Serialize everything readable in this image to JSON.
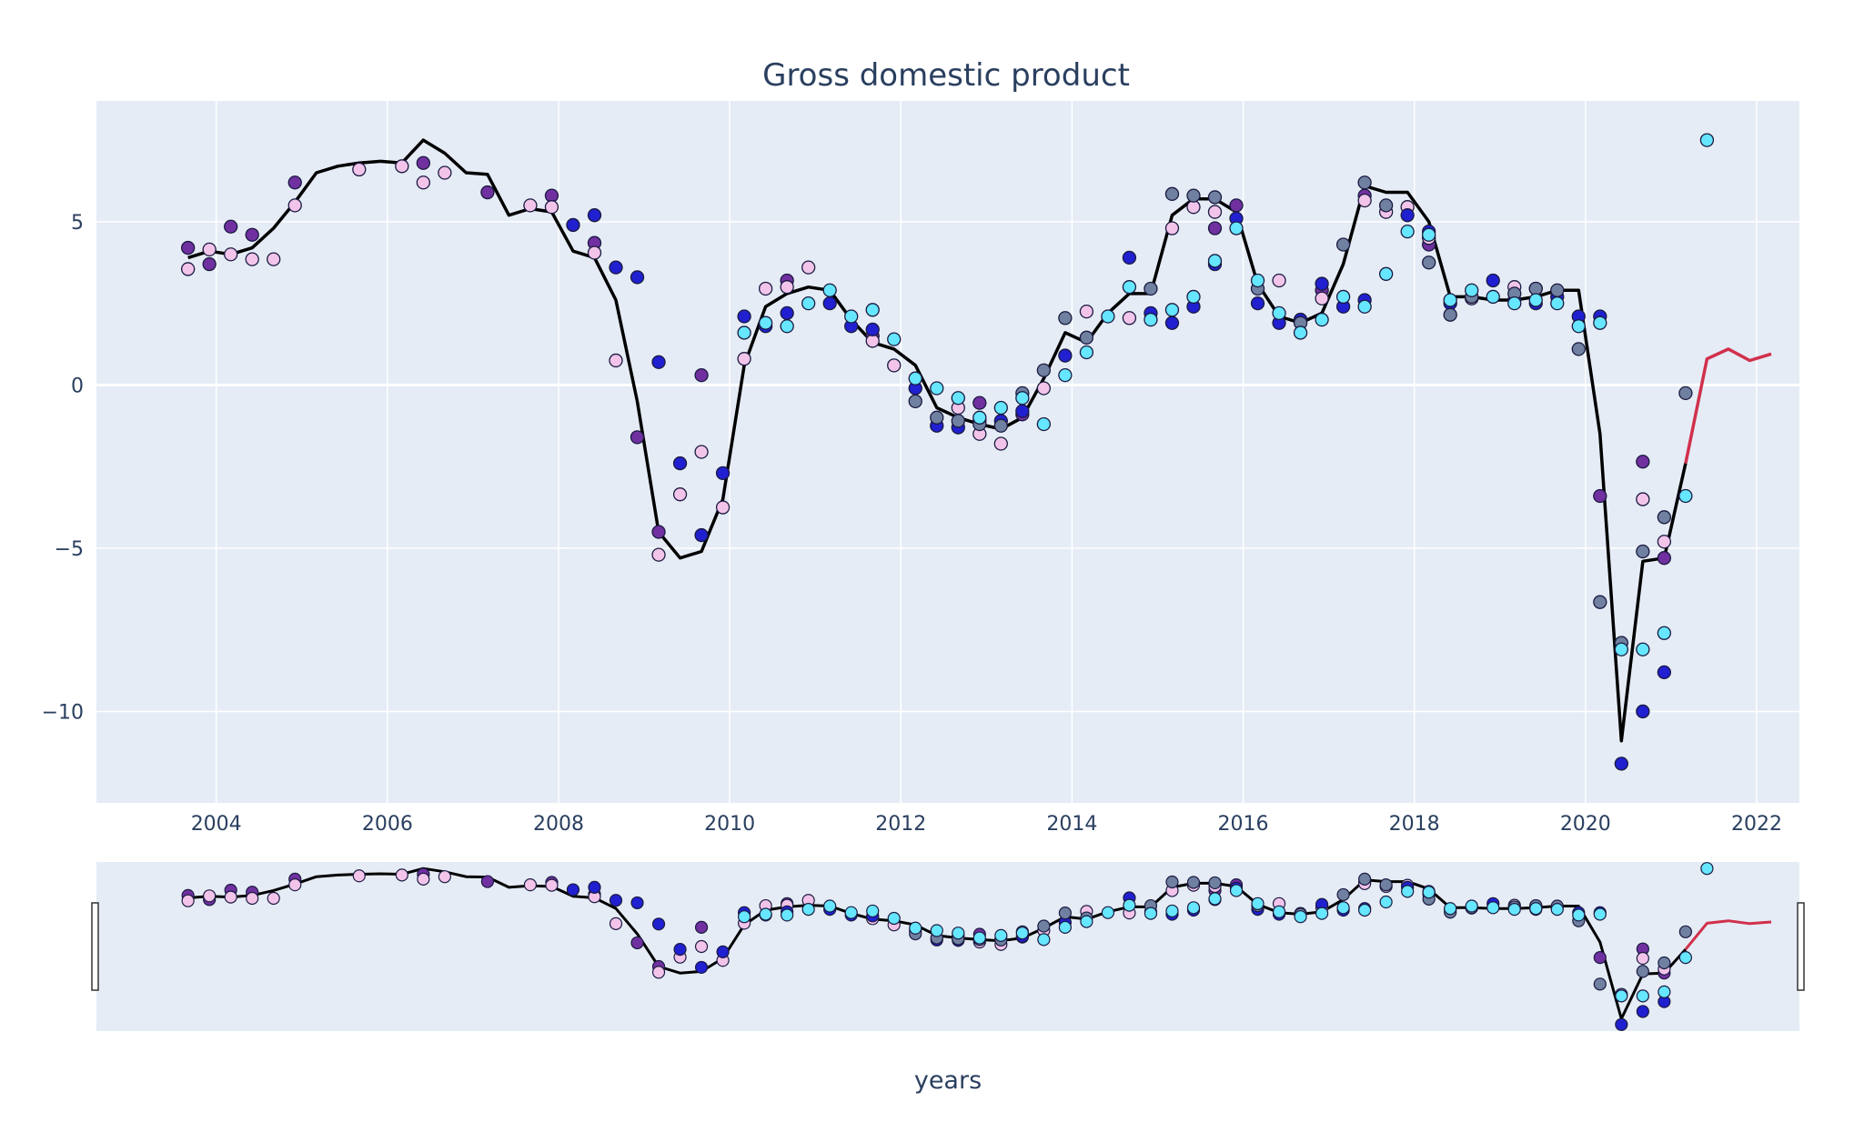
{
  "chart_data": {
    "type": "line",
    "title": "Gross domestic product",
    "xlabel": "years",
    "ylabel": "",
    "xlim": [
      2002.6,
      2022.5
    ],
    "ylim": [
      -12.8,
      8.7
    ],
    "x_ticks": [
      2004,
      2006,
      2008,
      2010,
      2012,
      2014,
      2016,
      2018,
      2020,
      2022
    ],
    "x_tick_labels": [
      "2004",
      "2006",
      "2008",
      "2010",
      "2012",
      "2014",
      "2016",
      "2018",
      "2020",
      "2022"
    ],
    "y_ticks": [
      5,
      0,
      -5,
      -10
    ],
    "y_tick_labels": [
      "5",
      "0",
      "−5",
      "−10"
    ],
    "grid": true,
    "rangeslider": true,
    "colors": {
      "plot_background": "#e5ecf6",
      "grid": "#ffffff",
      "actual_line": "#000000",
      "forecast_line": "#d1304b",
      "point_outline": "#1a1a40",
      "text": "#2a3f5f"
    },
    "series": [
      {
        "role": "actual",
        "color": "#000000",
        "x": [
          2003.67,
          2003.92,
          2004.17,
          2004.42,
          2004.67,
          2004.92,
          2005.17,
          2005.42,
          2005.67,
          2005.92,
          2006.17,
          2006.42,
          2006.67,
          2006.92,
          2007.17,
          2007.42,
          2007.67,
          2007.92,
          2008.17,
          2008.42,
          2008.67,
          2008.92,
          2009.17,
          2009.42,
          2009.67,
          2009.92,
          2010.17,
          2010.42,
          2010.67,
          2010.92,
          2011.17,
          2011.42,
          2011.67,
          2011.92,
          2012.17,
          2012.42,
          2012.67,
          2012.92,
          2013.17,
          2013.42,
          2013.67,
          2013.92,
          2014.17,
          2014.42,
          2014.67,
          2014.92,
          2015.17,
          2015.42,
          2015.67,
          2015.92,
          2016.17,
          2016.42,
          2016.67,
          2016.92,
          2017.17,
          2017.42,
          2017.67,
          2017.92,
          2018.17,
          2018.42,
          2018.67,
          2018.92,
          2019.17,
          2019.42,
          2019.67,
          2019.92,
          2020.17,
          2020.42,
          2020.67,
          2020.92,
          2021.17
        ],
        "values": [
          3.9,
          4.1,
          4.0,
          4.2,
          4.8,
          5.6,
          6.5,
          6.7,
          6.8,
          6.85,
          6.8,
          7.5,
          7.1,
          6.5,
          6.45,
          5.2,
          5.4,
          5.3,
          4.1,
          3.9,
          2.6,
          -0.5,
          -4.5,
          -5.3,
          -5.1,
          -3.5,
          0.6,
          2.4,
          2.8,
          3.0,
          2.9,
          2.0,
          1.3,
          1.1,
          0.6,
          -0.7,
          -1.0,
          -1.2,
          -1.35,
          -1.0,
          0.2,
          1.6,
          1.3,
          2.2,
          2.8,
          2.8,
          5.2,
          5.7,
          5.7,
          5.3,
          3.1,
          2.1,
          1.9,
          2.2,
          3.7,
          6.1,
          5.9,
          5.9,
          5.0,
          2.7,
          2.7,
          2.6,
          2.6,
          2.7,
          2.9,
          2.9,
          -1.5,
          -10.9,
          -5.4,
          -5.3,
          -2.4
        ]
      },
      {
        "role": "forecast",
        "color": "#d1304b",
        "x": [
          2021.17,
          2021.42,
          2021.67,
          2021.92,
          2022.17
        ],
        "values": [
          -2.4,
          0.8,
          1.1,
          0.75,
          0.95
        ]
      },
      {
        "role": "vintage-1",
        "color": "#7030a0",
        "x": [
          2003.67,
          2003.92,
          2004.17,
          2004.42,
          2004.92,
          2006.42,
          2007.17,
          2007.92,
          2008.42,
          2008.92,
          2009.17,
          2009.67,
          2010.67,
          2011.67,
          2012.92,
          2013.42,
          2015.67,
          2015.92,
          2016.92,
          2017.42,
          2018.17,
          2019.42,
          2020.17,
          2020.67,
          2020.92
        ],
        "values": [
          4.2,
          3.7,
          4.85,
          4.6,
          6.2,
          6.8,
          5.9,
          5.8,
          4.35,
          -1.6,
          -4.5,
          0.3,
          3.2,
          1.5,
          -0.55,
          -0.9,
          4.8,
          5.5,
          2.9,
          5.8,
          4.3,
          2.95,
          -3.4,
          -2.35,
          -5.3
        ]
      },
      {
        "role": "vintage-2",
        "color": "#f2c4ea",
        "x": [
          2003.67,
          2003.92,
          2004.17,
          2004.42,
          2004.67,
          2004.92,
          2005.67,
          2006.17,
          2006.42,
          2006.67,
          2007.67,
          2007.92,
          2008.42,
          2008.67,
          2009.17,
          2009.42,
          2009.67,
          2009.92,
          2010.17,
          2010.42,
          2010.67,
          2010.92,
          2011.67,
          2011.92,
          2012.67,
          2012.92,
          2013.17,
          2013.67,
          2014.17,
          2014.67,
          2015.17,
          2015.42,
          2015.67,
          2016.42,
          2016.92,
          2017.42,
          2017.67,
          2017.92,
          2018.17,
          2018.67,
          2019.17,
          2020.67,
          2020.92
        ],
        "values": [
          3.55,
          4.15,
          4.0,
          3.85,
          3.85,
          5.5,
          6.6,
          6.7,
          6.2,
          6.5,
          5.5,
          5.45,
          4.05,
          0.75,
          -5.2,
          -3.35,
          -2.05,
          -3.75,
          0.8,
          2.95,
          3.0,
          3.6,
          1.35,
          0.6,
          -0.7,
          -1.5,
          -1.8,
          -0.1,
          2.25,
          2.05,
          4.8,
          5.45,
          5.3,
          3.2,
          2.65,
          5.65,
          5.3,
          5.45,
          4.5,
          2.65,
          3.0,
          -3.5,
          -4.8
        ]
      },
      {
        "role": "vintage-3",
        "color": "#2020d0",
        "x": [
          2008.17,
          2008.42,
          2008.67,
          2008.92,
          2009.17,
          2009.42,
          2009.67,
          2009.92,
          2010.17,
          2010.42,
          2010.67,
          2011.17,
          2011.42,
          2011.67,
          2012.17,
          2012.42,
          2012.67,
          2012.92,
          2013.17,
          2013.42,
          2013.92,
          2014.67,
          2014.92,
          2015.17,
          2015.42,
          2015.67,
          2015.92,
          2016.17,
          2016.42,
          2016.67,
          2016.92,
          2017.17,
          2017.42,
          2017.92,
          2018.17,
          2018.42,
          2018.92,
          2019.17,
          2019.42,
          2019.67,
          2019.92,
          2020.17,
          2020.42,
          2020.67,
          2020.92
        ],
        "values": [
          4.9,
          5.2,
          3.6,
          3.3,
          0.7,
          -2.4,
          -4.6,
          -2.7,
          2.1,
          1.8,
          2.2,
          2.5,
          1.8,
          1.7,
          -0.1,
          -1.25,
          -1.3,
          -1.1,
          -1.1,
          -0.8,
          0.9,
          3.9,
          2.2,
          1.9,
          2.4,
          3.7,
          5.1,
          2.5,
          1.9,
          2.0,
          3.1,
          2.4,
          2.6,
          5.2,
          4.7,
          2.5,
          3.2,
          2.6,
          2.5,
          2.7,
          2.1,
          2.1,
          -11.6,
          -10.0,
          -8.8
        ]
      },
      {
        "role": "vintage-4",
        "color": "#7080a0",
        "x": [
          2012.17,
          2012.42,
          2012.67,
          2012.92,
          2013.17,
          2013.42,
          2013.67,
          2013.92,
          2014.17,
          2014.92,
          2015.17,
          2015.42,
          2015.67,
          2016.17,
          2016.67,
          2017.17,
          2017.42,
          2017.67,
          2018.17,
          2018.42,
          2018.67,
          2019.17,
          2019.42,
          2019.67,
          2019.92,
          2020.17,
          2020.42,
          2020.67,
          2020.92,
          2021.17
        ],
        "values": [
          -0.5,
          -1.0,
          -1.1,
          -1.2,
          -1.25,
          -0.25,
          0.45,
          2.05,
          1.45,
          2.95,
          5.85,
          5.8,
          5.75,
          2.95,
          1.9,
          4.3,
          6.2,
          5.5,
          3.75,
          2.15,
          2.7,
          2.8,
          2.95,
          2.9,
          1.1,
          -6.65,
          -7.9,
          -5.1,
          -4.05,
          -0.25
        ]
      },
      {
        "role": "vintage-5",
        "color": "#66e6ff",
        "x": [
          2010.17,
          2010.42,
          2010.67,
          2010.92,
          2011.17,
          2011.42,
          2011.67,
          2011.92,
          2012.17,
          2012.42,
          2012.67,
          2012.92,
          2013.17,
          2013.42,
          2013.67,
          2013.92,
          2014.17,
          2014.42,
          2014.67,
          2014.92,
          2015.17,
          2015.42,
          2015.67,
          2015.92,
          2016.17,
          2016.42,
          2016.67,
          2016.92,
          2017.17,
          2017.42,
          2017.67,
          2017.92,
          2018.17,
          2018.42,
          2018.67,
          2018.92,
          2019.17,
          2019.42,
          2019.67,
          2019.92,
          2020.17,
          2020.42,
          2020.67,
          2020.92,
          2021.17,
          2021.42
        ],
        "values": [
          1.6,
          1.9,
          1.8,
          2.5,
          2.9,
          2.1,
          2.3,
          1.4,
          0.2,
          -0.1,
          -0.4,
          -1.0,
          -0.7,
          -0.4,
          -1.2,
          0.3,
          1.0,
          2.1,
          3.0,
          2.0,
          2.3,
          2.7,
          3.8,
          4.8,
          3.2,
          2.2,
          1.6,
          2.0,
          2.7,
          2.4,
          3.4,
          4.7,
          4.6,
          2.6,
          2.9,
          2.7,
          2.5,
          2.6,
          2.5,
          1.8,
          1.9,
          -8.1,
          -8.1,
          -7.6,
          -3.4,
          7.5
        ]
      }
    ]
  }
}
